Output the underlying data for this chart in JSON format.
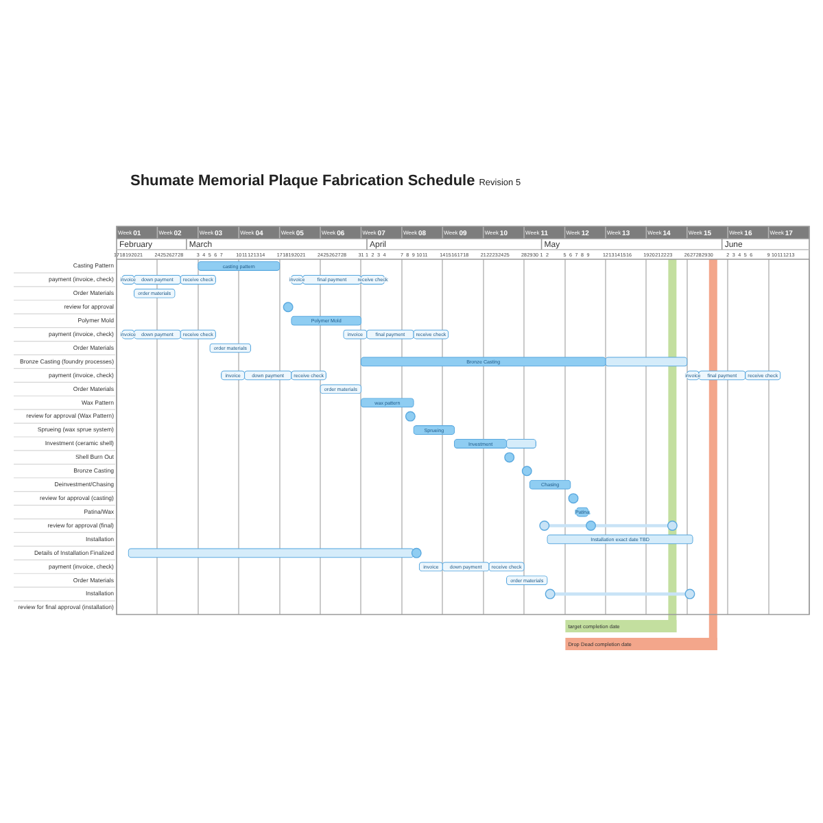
{
  "chart_data": {
    "type": "bar",
    "orientation": "horizontal",
    "title": "Shumate Memorial Plaque Fabrication Schedule",
    "subtitle": "Revision 5",
    "categories": [
      "Casting Pattern",
      "payment (invoice, check)",
      "Order Materials",
      "review for approval",
      "Polymer Mold",
      "payment (invoice, check)",
      "Order Materials",
      "Bronze Casting (foundry processes)",
      "payment (invoice, check)",
      "Order Materials",
      "Wax Pattern",
      "review for approval (Wax Pattern)",
      "Sprueing (wax sprue system)",
      "Investment (ceramic shell)",
      "Shell Burn Out",
      "Bronze Casting",
      "Deinvestment/Chasing",
      "review for approval (casting)",
      "Patina/Wax",
      "review for approval (final)",
      "Installation",
      "Details of Installation Finalized",
      "payment (invoice, check)",
      "Order Materials",
      "Installation",
      "review for final approval (installation)"
    ],
    "xlabel": "Week",
    "xlim": [
      0.5,
      17.5
    ],
    "xticks": [
      {
        "value": 1,
        "label": "01"
      },
      {
        "value": 2,
        "label": "02"
      },
      {
        "value": 3,
        "label": "03"
      },
      {
        "value": 4,
        "label": "04"
      },
      {
        "value": 5,
        "label": "05"
      },
      {
        "value": 6,
        "label": "06"
      },
      {
        "value": 7,
        "label": "07"
      },
      {
        "value": 8,
        "label": "08"
      },
      {
        "value": 9,
        "label": "09"
      },
      10,
      11,
      12,
      13,
      14,
      15,
      16,
      17
    ],
    "x2lim": [
      "--02-17",
      "--06-16"
    ],
    "x2ticks": [
      {
        "value": "--02-17",
        "label": "17"
      },
      {
        "value": "--02-18",
        "label": "18"
      },
      {
        "value": "--02-19",
        "label": "19"
      },
      {
        "value": "--02-20",
        "label": "20"
      },
      {
        "value": "--02-21",
        "label": "21"
      },
      {
        "value": "--02-24",
        "label": "24"
      },
      {
        "value": "--02-25",
        "label": "25"
      },
      {
        "value": "--02-26",
        "label": "26"
      },
      {
        "value": "--02-27",
        "label": "27"
      },
      {
        "value": "--02-28",
        "label": "28"
      },
      {
        "value": "--03-03",
        "label": "3"
      },
      {
        "value": "--03-04",
        "label": "4"
      },
      {
        "value": "--03-05",
        "label": "5"
      },
      {
        "value": "--03-06",
        "label": "6"
      },
      {
        "value": "--03-07",
        "label": "7"
      },
      {
        "value": "--03-10",
        "label": "10"
      },
      {
        "value": "--03-11",
        "label": "11"
      },
      {
        "value": "--03-12",
        "label": "12"
      },
      {
        "value": "--03-13",
        "label": "13"
      },
      {
        "value": "--03-14",
        "label": "14"
      },
      {
        "value": "--03-17",
        "label": "17"
      },
      {
        "value": "--03-18",
        "label": "18"
      },
      {
        "value": "--03-19",
        "label": "19"
      },
      {
        "value": "--03-20",
        "label": "20"
      },
      {
        "value": "--03-21",
        "label": "21"
      },
      {
        "value": "--03-24",
        "label": "24"
      },
      {
        "value": "--03-25",
        "label": "25"
      },
      {
        "value": "--03-26",
        "label": "26"
      },
      {
        "value": "--03-27",
        "label": "27"
      },
      {
        "value": "--03-28",
        "label": "28"
      },
      {
        "value": "--03-31",
        "label": "31"
      },
      {
        "value": "--04-01",
        "label": "1"
      },
      {
        "value": "--04-02",
        "label": "2"
      },
      {
        "value": "--04-03",
        "label": "3"
      },
      {
        "value": "--04-04",
        "label": "4"
      },
      {
        "value": "--04-07",
        "label": "7"
      },
      {
        "value": "--04-08",
        "label": "8"
      },
      {
        "value": "--04-09",
        "label": "9"
      },
      {
        "value": "--04-10",
        "label": "10"
      },
      {
        "value": "--04-11",
        "label": "11"
      },
      {
        "value": "--04-14",
        "label": "14"
      },
      {
        "value": "--04-15",
        "label": "15"
      },
      {
        "value": "--04-16",
        "label": "16"
      },
      {
        "value": "--04-17",
        "label": "17"
      },
      {
        "value": "--04-18",
        "label": "18"
      },
      {
        "value": "--04-21",
        "label": "21"
      },
      {
        "value": "--04-22",
        "label": "22"
      },
      {
        "value": "--04-23",
        "label": "23"
      },
      {
        "value": "--04-24",
        "label": "24"
      },
      {
        "value": "--04-25",
        "label": "25"
      },
      {
        "value": "--04-28",
        "label": "28"
      },
      {
        "value": "--04-29",
        "label": "29"
      },
      {
        "value": "--04-30",
        "label": "30"
      },
      {
        "value": "--05-01",
        "label": "1"
      },
      {
        "value": "--05-02",
        "label": "2"
      },
      {
        "value": "--05-05",
        "label": "5"
      },
      {
        "value": "--05-06",
        "label": "6"
      },
      {
        "value": "--05-07",
        "label": "7"
      },
      {
        "value": "--05-08",
        "label": "8"
      },
      {
        "value": "--05-09",
        "label": "9"
      },
      {
        "value": "--05-12",
        "label": "12"
      },
      {
        "value": "--05-13",
        "label": "13"
      },
      {
        "value": "--05-14",
        "label": "14"
      },
      {
        "value": "--05-15",
        "label": "15"
      },
      {
        "value": "--05-16",
        "label": "16"
      },
      {
        "value": "--05-19",
        "label": "19"
      },
      {
        "value": "--05-20",
        "label": "20"
      },
      {
        "value": "--05-21",
        "label": "21"
      },
      {
        "value": "--05-22",
        "label": "22"
      },
      {
        "value": "--05-23",
        "label": "23"
      },
      {
        "value": "--05-26",
        "label": "26"
      },
      {
        "value": "--05-27",
        "label": "27"
      },
      {
        "value": "--05-28",
        "label": "28"
      },
      {
        "value": "--05-29",
        "label": "29"
      },
      {
        "value": "--05-30",
        "label": "30"
      },
      {
        "value": "--06-02",
        "label": "2"
      },
      {
        "value": "--06-03",
        "label": "3"
      },
      {
        "value": "--06-04",
        "label": "4"
      },
      {
        "value": "--06-05",
        "label": "5"
      },
      {
        "value": "--06-06",
        "label": "6"
      },
      {
        "value": "--06-09",
        "label": "9"
      },
      {
        "value": "--06-10",
        "label": "10"
      },
      {
        "value": "--06-11",
        "label": "11"
      },
      {
        "value": "--06-12",
        "label": "12"
      },
      {
        "value": "--06-13",
        "label": "13"
      }
    ],
    "annotations": [
      "February",
      "March",
      "April",
      "May",
      "June"
    ],
    "grid": "x",
    "series": [
      {
        "color": "#c8e3f6",
        "line_style": "solid",
        "values": [
          null,
          null,
          null,
          null,
          null,
          null,
          null,
          null,
          null,
          null,
          null,
          null,
          null,
          null,
          null,
          null,
          null,
          null,
          null,
          3.14,
          null,
          null,
          null,
          null,
          3.43,
          null
        ],
        "base": [
          null,
          null,
          null,
          null,
          null,
          null,
          null,
          null,
          null,
          null,
          null,
          null,
          null,
          null,
          null,
          null,
          null,
          null,
          null,
          11,
          null,
          null,
          null,
          null,
          11.14,
          null
        ]
      },
      {
        "type": "scatter",
        "color": "#c8e3f6",
        "marker": "circle",
        "values": [
          null,
          null,
          null,
          null,
          null,
          null,
          null,
          null,
          null,
          null,
          null,
          null,
          null,
          null,
          null,
          null,
          null,
          null,
          null,
          11,
          null,
          null,
          null,
          null,
          11.14,
          null
        ]
      },
      {
        "type": "scatter",
        "color": "#c8e3f6",
        "marker": "circle",
        "values": [
          null,
          null,
          null,
          null,
          null,
          null,
          null,
          null,
          null,
          null,
          null,
          null,
          null,
          null,
          null,
          null,
          null,
          null,
          null,
          14.14,
          null,
          null,
          null,
          null,
          14.57,
          null
        ]
      },
      {
        "color": "#d5ecfa",
        "values": [
          null,
          null,
          null,
          null,
          null,
          null,
          null,
          2,
          null,
          null,
          null,
          null,
          null,
          0.72,
          null,
          null,
          null,
          null,
          null,
          null,
          3.57,
          7,
          null,
          null,
          null,
          null
        ],
        "base": [
          null,
          null,
          null,
          null,
          null,
          null,
          null,
          12.5,
          null,
          null,
          null,
          null,
          null,
          10.07,
          null,
          null,
          null,
          null,
          null,
          null,
          11.07,
          0.79,
          null,
          null,
          null,
          null
        ],
        "value_labels": [
          null,
          null,
          null,
          null,
          null,
          null,
          null,
          null,
          null,
          null,
          null,
          null,
          null,
          null,
          null,
          null,
          null,
          null,
          null,
          null,
          "Installation exact date TBD",
          null,
          null,
          null,
          null,
          null
        ]
      },
      {
        "color": "#8fcdf2",
        "values": [
          2,
          null,
          null,
          null,
          1.71,
          null,
          null,
          6,
          null,
          null,
          1.29,
          null,
          1,
          1.28,
          null,
          null,
          1,
          null,
          0.28,
          null,
          null,
          null,
          null,
          null,
          null,
          null
        ],
        "base": [
          2.5,
          null,
          null,
          null,
          4.79,
          null,
          null,
          6.5,
          null,
          null,
          6.5,
          null,
          7.79,
          8.79,
          null,
          null,
          10.64,
          null,
          11.79,
          null,
          null,
          null,
          null,
          null,
          null,
          null
        ],
        "value_labels": [
          "casting pattern",
          null,
          null,
          null,
          "Polymer Mold",
          null,
          null,
          "Bronze Casting",
          null,
          null,
          "wax pattern",
          null,
          "Sprueing",
          "Investment",
          null,
          null,
          "Chasing",
          null,
          "Patina",
          null,
          null,
          null,
          null,
          null,
          null,
          null
        ]
      },
      {
        "color": "#eef7fd",
        "values": [
          null,
          0.29,
          null,
          null,
          null,
          0.29,
          null,
          null,
          0.57,
          null,
          null,
          null,
          null,
          null,
          null,
          null,
          null,
          null,
          null,
          null,
          null,
          null,
          0.57,
          null,
          null,
          null
        ],
        "base": [
          null,
          0.64,
          null,
          null,
          null,
          0.64,
          null,
          null,
          3.07,
          null,
          null,
          null,
          null,
          null,
          null,
          null,
          null,
          null,
          null,
          null,
          null,
          null,
          7.93,
          null,
          null,
          null
        ],
        "value_labels": [
          null,
          "invoice",
          null,
          null,
          null,
          "invoice",
          null,
          null,
          "invoice",
          null,
          null,
          null,
          null,
          null,
          null,
          null,
          null,
          null,
          null,
          null,
          null,
          null,
          "invoice",
          null,
          null,
          null
        ]
      },
      {
        "color": "#eef7fd",
        "values": [
          null,
          1.14,
          null,
          null,
          null,
          1.14,
          null,
          null,
          1.15,
          null,
          null,
          null,
          null,
          null,
          null,
          null,
          null,
          null,
          null,
          null,
          null,
          null,
          1.14,
          null,
          null,
          null
        ],
        "base": [
          null,
          0.93,
          null,
          null,
          null,
          0.93,
          null,
          null,
          3.64,
          null,
          null,
          null,
          null,
          null,
          null,
          null,
          null,
          null,
          null,
          null,
          null,
          null,
          8.5,
          null,
          null,
          null
        ],
        "value_labels": [
          null,
          "down payment",
          null,
          null,
          null,
          "down payment",
          null,
          null,
          "down payment",
          null,
          null,
          null,
          null,
          null,
          null,
          null,
          null,
          null,
          null,
          null,
          null,
          null,
          "down payment",
          null,
          null,
          null
        ]
      },
      {
        "color": "#eef7fd",
        "values": [
          null,
          0.86,
          null,
          null,
          null,
          0.86,
          null,
          null,
          0.85,
          null,
          null,
          null,
          null,
          null,
          null,
          null,
          null,
          null,
          null,
          null,
          null,
          null,
          0.86,
          null,
          null,
          null
        ],
        "base": [
          null,
          2.07,
          null,
          null,
          null,
          2.07,
          null,
          null,
          4.79,
          null,
          null,
          null,
          null,
          null,
          null,
          null,
          null,
          null,
          null,
          null,
          null,
          null,
          9.64,
          null,
          null,
          null
        ],
        "value_labels": [
          null,
          "receive check",
          null,
          null,
          null,
          "receive check",
          null,
          null,
          "receive check",
          null,
          null,
          null,
          null,
          null,
          null,
          null,
          null,
          null,
          null,
          null,
          null,
          null,
          "receive check",
          null,
          null,
          null
        ]
      },
      {
        "color": "#eef7fd",
        "values": [
          null,
          0.28,
          null,
          null,
          null,
          0.57,
          null,
          null,
          0.29,
          null,
          null,
          null,
          null,
          null,
          null,
          null,
          null,
          null,
          null,
          null,
          null,
          null,
          null,
          null,
          null,
          null
        ],
        "base": [
          null,
          4.79,
          null,
          null,
          null,
          6.07,
          null,
          null,
          14.5,
          null,
          null,
          null,
          null,
          null,
          null,
          null,
          null,
          null,
          null,
          null,
          null,
          null,
          null,
          null,
          null,
          null
        ],
        "value_labels": [
          null,
          "invoice",
          null,
          null,
          null,
          "invoice",
          null,
          null,
          "invoice",
          null,
          null,
          null,
          null,
          null,
          null,
          null,
          null,
          null,
          null,
          null,
          null,
          null,
          null,
          null,
          null,
          null
        ]
      },
      {
        "color": "#eef7fd",
        "values": [
          null,
          1.43,
          null,
          null,
          null,
          1.15,
          null,
          null,
          1.14,
          null,
          null,
          null,
          null,
          null,
          null,
          null,
          null,
          null,
          null,
          null,
          null,
          null,
          null,
          null,
          null,
          null
        ],
        "base": [
          null,
          5.07,
          null,
          null,
          null,
          6.64,
          null,
          null,
          14.79,
          null,
          null,
          null,
          null,
          null,
          null,
          null,
          null,
          null,
          null,
          null,
          null,
          null,
          null,
          null,
          null,
          null
        ],
        "value_labels": [
          null,
          "final payment",
          null,
          null,
          null,
          "final payment",
          null,
          null,
          "final payment",
          null,
          null,
          null,
          null,
          null,
          null,
          null,
          null,
          null,
          null,
          null,
          null,
          null,
          null,
          null,
          null,
          null
        ]
      },
      {
        "color": "#eef7fd",
        "values": [
          null,
          0.57,
          null,
          null,
          null,
          0.85,
          null,
          null,
          0.86,
          null,
          null,
          null,
          null,
          null,
          null,
          null,
          null,
          null,
          null,
          null,
          null,
          null,
          null,
          null,
          null,
          null
        ],
        "base": [
          null,
          6.5,
          null,
          null,
          null,
          7.79,
          null,
          null,
          15.93,
          null,
          null,
          null,
          null,
          null,
          null,
          null,
          null,
          null,
          null,
          null,
          null,
          null,
          null,
          null,
          null,
          null
        ],
        "value_labels": [
          null,
          "receive check",
          null,
          null,
          null,
          "receive check",
          null,
          null,
          "receive check",
          null,
          null,
          null,
          null,
          null,
          null,
          null,
          null,
          null,
          null,
          null,
          null,
          null,
          null,
          null,
          null,
          null
        ]
      },
      {
        "color": "#eef7fd",
        "values": [
          null,
          null,
          1,
          null,
          null,
          null,
          1,
          null,
          null,
          1,
          null,
          null,
          null,
          null,
          null,
          null,
          null,
          null,
          null,
          null,
          null,
          null,
          null,
          1,
          null,
          null
        ],
        "base": [
          null,
          null,
          0.93,
          null,
          null,
          null,
          2.79,
          null,
          null,
          5.5,
          null,
          null,
          null,
          null,
          null,
          null,
          null,
          null,
          null,
          null,
          null,
          null,
          null,
          10.07,
          null,
          null
        ],
        "value_labels": [
          null,
          null,
          "order materials",
          null,
          null,
          null,
          "order materials",
          null,
          null,
          "order materials",
          null,
          null,
          null,
          null,
          null,
          null,
          null,
          null,
          null,
          null,
          null,
          null,
          null,
          "order materials",
          null,
          null
        ]
      },
      {
        "type": "scatter",
        "color": "#8fcdf2",
        "marker": "circle",
        "values": [
          null,
          null,
          null,
          4.71,
          null,
          null,
          null,
          null,
          null,
          null,
          null,
          7.71,
          null,
          null,
          10.14,
          10.57,
          null,
          11.71,
          null,
          12.14,
          null,
          7.86,
          null,
          null,
          null,
          null
        ]
      }
    ],
    "ref_lines": [
      {
        "axis": "x",
        "value": 14.14,
        "label": "target completion date",
        "color": "#c3df9f"
      },
      {
        "axis": "x",
        "value": 15.14,
        "label": "Drop Dead completion date",
        "color": "#f3a68b"
      }
    ]
  }
}
